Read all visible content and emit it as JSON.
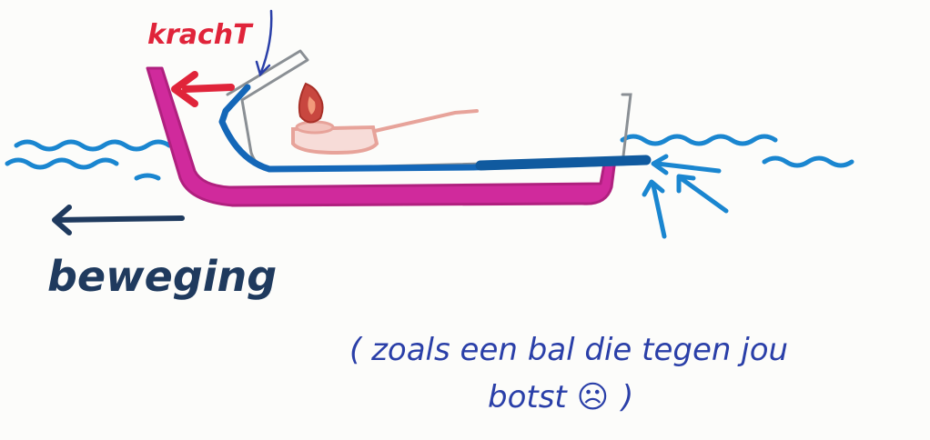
{
  "labels": {
    "force": "krachT",
    "motion": "beweging",
    "note_line1": "( zoals een bal die tegen jou",
    "note_line2": "botst ",
    "note_emoji": "☹",
    "note_close": ")"
  },
  "colors": {
    "boat_hull": "#d02a9c",
    "pipe": "#1467b8",
    "pipe_inner": "#9aa3ab",
    "water": "#1a86d0",
    "force_arrow": "#e0243a",
    "motion_arrow": "#1f3a5e",
    "candle": "#c8473f",
    "candle_holder": "#e7a39a",
    "note_text": "#2a3fa8"
  },
  "icons": {
    "flame": "candle-flame-icon",
    "note_face": "surprised-face-icon"
  }
}
